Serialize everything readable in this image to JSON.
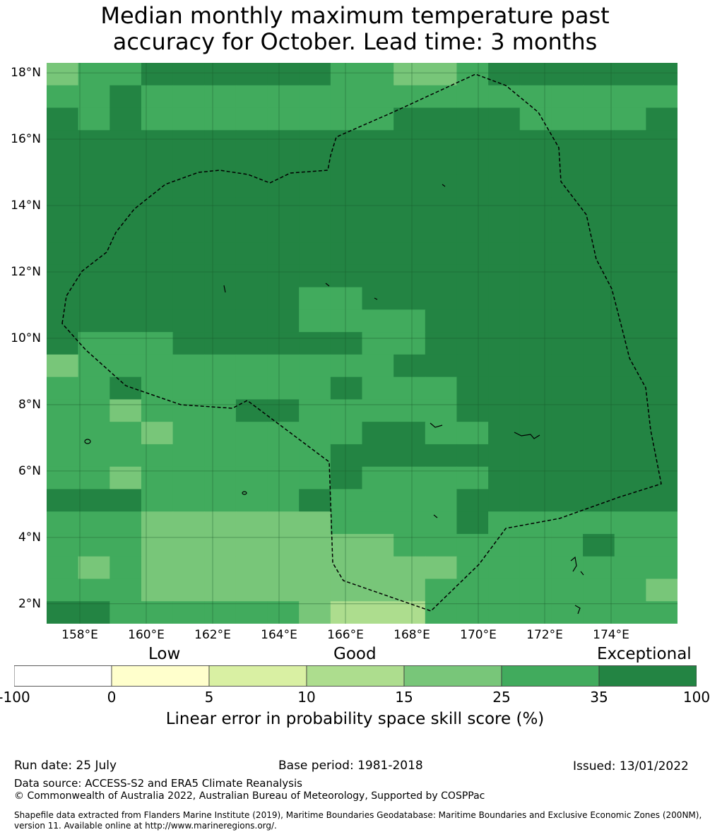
{
  "title_line1": "Median monthly maximum temperature past",
  "title_line2": "accuracy for October. Lead time: 3 months",
  "map": {
    "lat_range": [
      1.4,
      18.3
    ],
    "lon_range": [
      157.0,
      176.0
    ],
    "lat_ticks": [
      "18°N",
      "16°N",
      "14°N",
      "12°N",
      "10°N",
      "8°N",
      "6°N",
      "4°N",
      "2°N"
    ],
    "lon_ticks": [
      "158°E",
      "160°E",
      "162°E",
      "164°E",
      "166°E",
      "168°E",
      "170°E",
      "172°E",
      "174°E"
    ],
    "grid_rows_description": "skill class per 0.83° cell, 0=<0,1=0-5,2=5-10,3=10-15,4=15-25,5=25-35,6=35-100",
    "grid": [
      "45566666655445666666",
      "55655555555555555555",
      "65655555555666655556",
      "66666666666666666666",
      "66666666666666666666",
      "66666666666666666666",
      "66666666666666666666",
      "66666666666666666666",
      "66666666666666666666",
      "66666666666666666666",
      "66666666556666666666",
      "66666666555566666666",
      "65556666665566666666",
      "45555555555666666666",
      "55655555565556666666",
      "55455566555556666666",
      "55545555556655666666",
      "55555555566666666666",
      "55455555565555666666",
      "66655555655556666666",
      "55544444455556555555",
      "55544444444555555655",
      "54544444444445555555",
      "55544444444455555554",
      "66555555433355555555"
    ],
    "colors": [
      "#ffffff",
      "#ffffcc",
      "#d9f0a3",
      "#addd8e",
      "#78c679",
      "#41ab5d",
      "#238443"
    ]
  },
  "legend": {
    "categories": [
      "Low",
      "Good",
      "Exceptional"
    ],
    "ticks": [
      "-100",
      "0",
      "5",
      "10",
      "15",
      "25",
      "35",
      "100"
    ],
    "colors": [
      "#ffffff",
      "#ffffcc",
      "#d9f0a3",
      "#addd8e",
      "#78c679",
      "#41ab5d",
      "#238443"
    ],
    "title": "Linear error in probability space skill score (%)"
  },
  "footer": {
    "run_date": "Run date: 25 July",
    "base_period": "Base period: 1981-2018",
    "issued": "Issued: 13/01/2022",
    "data_source": "Data source: ACCESS-S2 and ERA5 Climate Reanalysis",
    "copyright": "© Commonwealth of Australia 2022, Australian Bureau of Meteorology, Supported by COSPPac",
    "shapefile_line1": "Shapefile data extracted from Flanders Marine Institute (2019), Maritime Boundaries Geodatabase: Maritime Boundaries and Exclusive Economic Zones (200NM),",
    "shapefile_line2": "version 11. Available online at http://www.marineregions.org/."
  }
}
